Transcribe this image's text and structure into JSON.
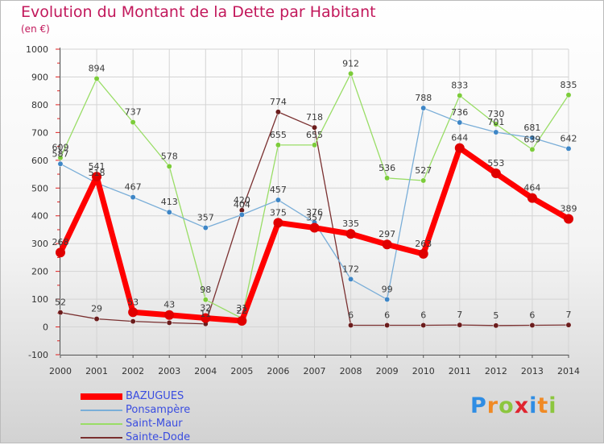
{
  "colors": {
    "title": "#c2185b",
    "legend_text": "#3a4de0",
    "grid": "#d4d4d4",
    "axis": "#555555",
    "tick_red": "#e02020"
  },
  "logo": {
    "text": "Proxiti",
    "letter_colors": [
      "#2f8de4",
      "#f08a24",
      "#8cc63f",
      "#e0242f",
      "#2f8de4",
      "#f08a24",
      "#8cc63f"
    ]
  },
  "chart_data": {
    "type": "line",
    "title": "Evolution du Montant de la Dette par Habitant",
    "unit_label": "(en €)",
    "xlabel": "",
    "ylabel": "",
    "ylim": [
      -100,
      1000
    ],
    "yticks": [
      -100,
      0,
      100,
      200,
      300,
      400,
      500,
      600,
      700,
      800,
      900,
      1000
    ],
    "grid": true,
    "legend_position": "bottom-left",
    "categories": [
      "2000",
      "2001",
      "2002",
      "2003",
      "2004",
      "2005",
      "2006",
      "2007",
      "2008",
      "2009",
      "2010",
      "2011",
      "2012",
      "2013",
      "2014"
    ],
    "series": [
      {
        "name": "BAZUGUES",
        "color": "#ff0000",
        "marker": "#e00000",
        "width": 7,
        "radius": 6,
        "values": [
          268,
          541,
          53,
          43,
          32,
          22,
          375,
          357,
          335,
          297,
          263,
          644,
          553,
          464,
          389
        ],
        "labels": [
          "268",
          "541",
          "53",
          "43",
          "32",
          "22",
          "375",
          "357",
          "335",
          "297",
          "263",
          "644",
          "553",
          "464",
          "389"
        ]
      },
      {
        "name": "Ponsampère",
        "color": "#7aaed8",
        "marker": "#3e86c6",
        "width": 1.3,
        "radius": 3.2,
        "values": [
          587,
          518,
          467,
          413,
          357,
          404,
          457,
          376,
          172,
          99,
          788,
          736,
          701,
          681,
          642
        ],
        "labels": [
          "587",
          "518",
          "467",
          "413",
          "357",
          "404",
          "457",
          "376",
          "172",
          "99",
          "788",
          "736",
          "701",
          "681",
          "642"
        ]
      },
      {
        "name": "Saint-Maur",
        "color": "#99dd66",
        "marker": "#7ccc3a",
        "width": 1.3,
        "radius": 3.2,
        "values": [
          609,
          894,
          737,
          578,
          98,
          31,
          655,
          655,
          912,
          536,
          527,
          833,
          730,
          639,
          835
        ],
        "labels": [
          "609",
          "894",
          "737",
          "578",
          "98",
          "31",
          "655",
          "655",
          "912",
          "536",
          "527",
          "833",
          "730",
          "639",
          "835"
        ]
      },
      {
        "name": "Sainte-Dode",
        "color": "#7a3030",
        "marker": "#6b1c1c",
        "width": 1.3,
        "radius": 3.2,
        "values": [
          52,
          29,
          20,
          15,
          11,
          420,
          774,
          718,
          6,
          6,
          6,
          7,
          5,
          6,
          7
        ],
        "labels": [
          "52",
          "29",
          "",
          "",
          "11",
          "420",
          "774",
          "718",
          "6",
          "6",
          "6",
          "7",
          "5",
          "6",
          "7"
        ]
      }
    ]
  }
}
